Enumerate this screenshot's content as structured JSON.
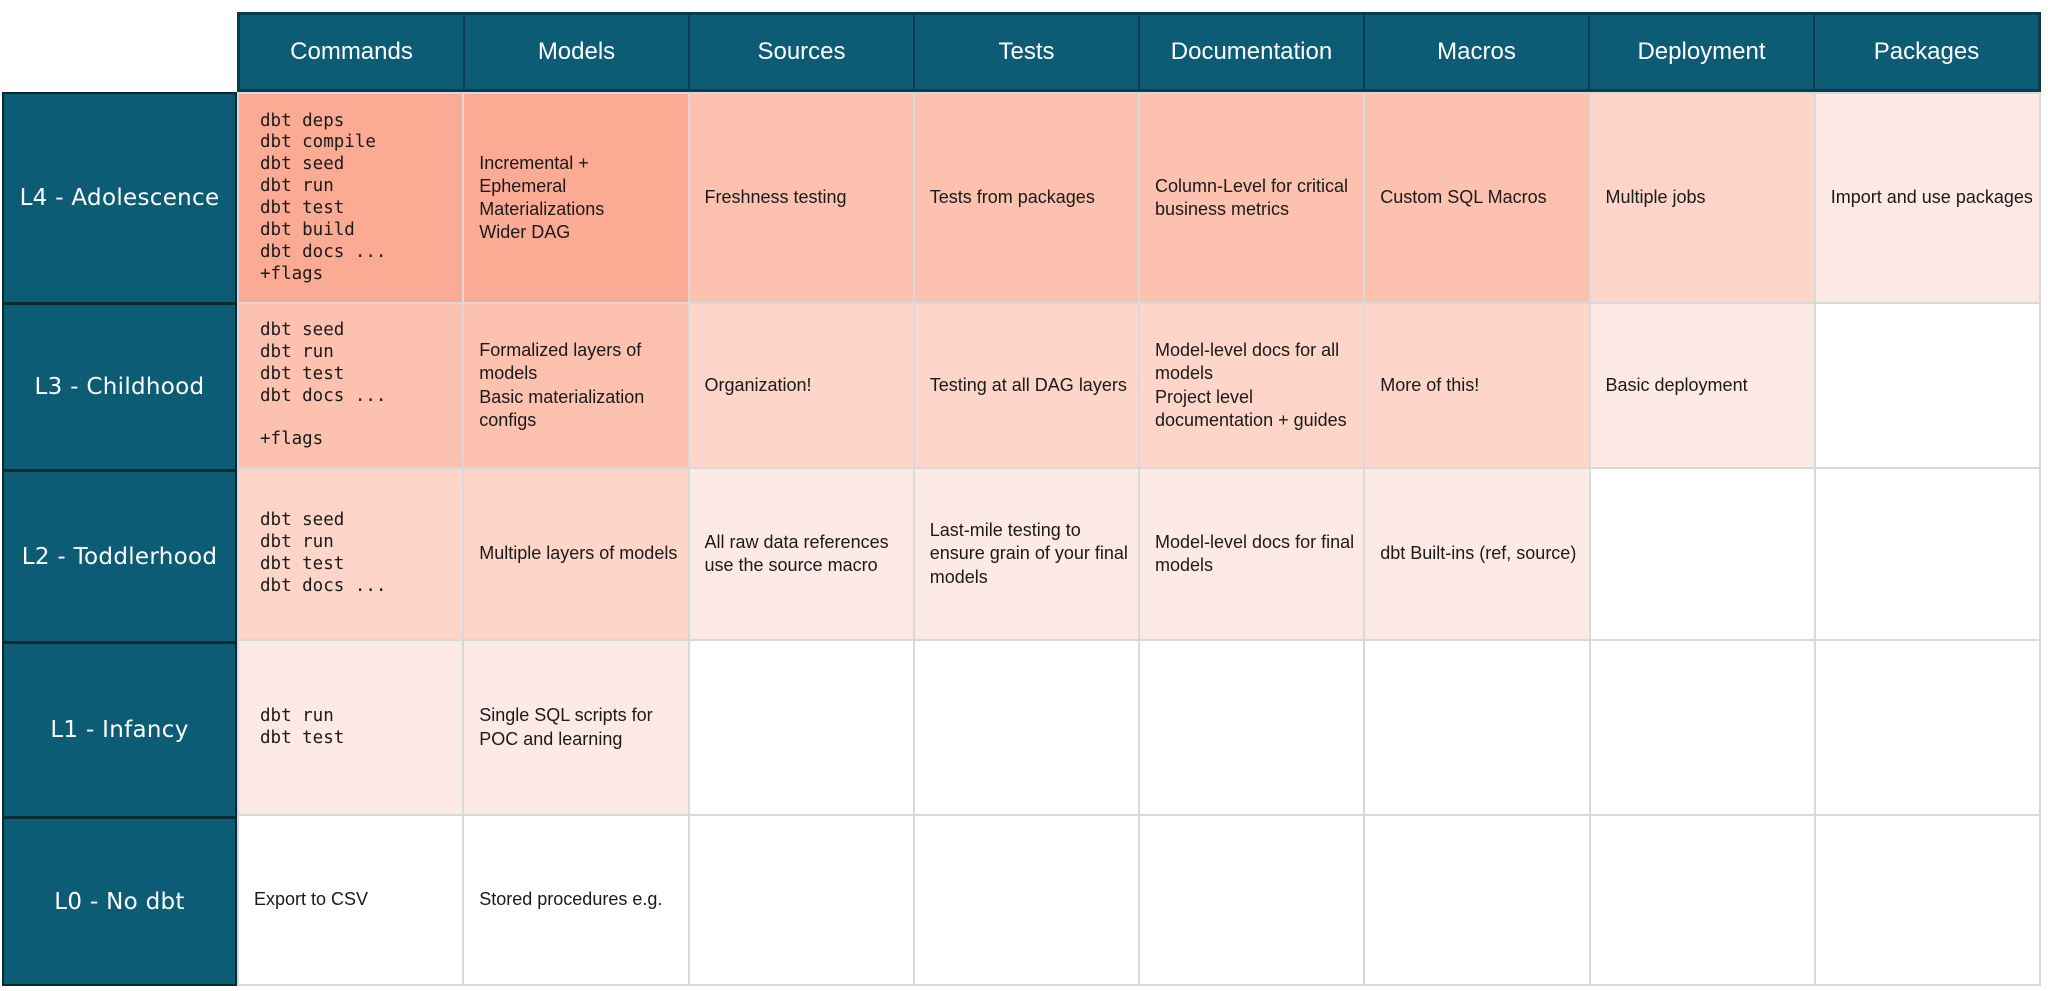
{
  "colors": {
    "teal": "#0d5c75",
    "header_border": "#093c4e",
    "label_border": "#0b2833",
    "grid_line": "#d9d9d9",
    "header_text": "#ffffff",
    "cell_text": "#1a1a1a",
    "shade_palette": [
      "#fbaa94",
      "#fcc1af",
      "#fdd5c9",
      "#feeae5",
      "#ffffff"
    ]
  },
  "chart_data": {
    "type": "table",
    "title": "",
    "columns": [
      "Commands",
      "Models",
      "Sources",
      "Tests",
      "Documentation",
      "Macros",
      "Deployment",
      "Packages"
    ],
    "row_labels": [
      "L4 - Adolescence",
      "L3 - Childhood",
      "L2 - Toddlerhood",
      "L1 - Infancy",
      "L0 - No dbt"
    ],
    "shade_palette": [
      "#fbaa94",
      "#fcc1af",
      "#fdd5c9",
      "#feeae5",
      "#ffffff"
    ],
    "rows": [
      {
        "label": "L4 - Adolescence",
        "cells": [
          {
            "text": "dbt deps\ndbt compile\ndbt seed\ndbt run\ndbt test\ndbt build\ndbt docs ...\n+flags",
            "mono": true,
            "shade": 0
          },
          {
            "text": "Incremental +\nEphemeral\nMaterializations\nWider DAG",
            "shade": 0
          },
          {
            "text": "Freshness testing",
            "shade": 1,
            "nowrap": true
          },
          {
            "text": "Tests from packages",
            "shade": 1,
            "nowrap": true
          },
          {
            "text": "Column-Level for critical\nbusiness metrics",
            "shade": 1
          },
          {
            "text": "Custom SQL Macros",
            "shade": 1,
            "nowrap": true
          },
          {
            "text": "Multiple jobs",
            "shade": 2,
            "nowrap": true
          },
          {
            "text": "Import and use packages",
            "shade": 3,
            "nowrap": true
          }
        ]
      },
      {
        "label": "L3 - Childhood",
        "cells": [
          {
            "text": "dbt seed\ndbt run\ndbt test\ndbt docs ...\n\n+flags",
            "mono": true,
            "shade": 1
          },
          {
            "text": "Formalized layers of models\nBasic materialization configs",
            "shade": 1
          },
          {
            "text": "Organization!",
            "shade": 2,
            "nowrap": true
          },
          {
            "text": "Testing at all DAG layers",
            "shade": 2,
            "nowrap": true
          },
          {
            "text": "Model-level docs for all models\nProject level documentation + guides",
            "shade": 2
          },
          {
            "text": "More of this!",
            "shade": 2,
            "nowrap": true
          },
          {
            "text": "Basic deployment",
            "shade": 3,
            "nowrap": true
          },
          {
            "text": "",
            "shade": 4
          }
        ]
      },
      {
        "label": "L2 - Toddlerhood",
        "cells": [
          {
            "text": "dbt seed\ndbt run\ndbt test\ndbt docs ...",
            "mono": true,
            "shade": 2
          },
          {
            "text": "Multiple layers of models",
            "shade": 2,
            "nowrap": true
          },
          {
            "text": "All raw data references use the source macro",
            "shade": 3
          },
          {
            "text": "Last-mile testing to ensure grain of your final models",
            "shade": 3
          },
          {
            "text": "Model-level docs for final models",
            "shade": 3
          },
          {
            "text": "dbt Built-ins (ref, source)",
            "shade": 3,
            "nowrap": true
          },
          {
            "text": "",
            "shade": 4
          },
          {
            "text": "",
            "shade": 4
          }
        ]
      },
      {
        "label": "L1 - Infancy",
        "cells": [
          {
            "text": "dbt run\ndbt test",
            "mono": true,
            "shade": 3
          },
          {
            "text": "Single SQL scripts for POC and learning",
            "shade": 3
          },
          {
            "text": "",
            "shade": 4
          },
          {
            "text": "",
            "shade": 4
          },
          {
            "text": "",
            "shade": 4
          },
          {
            "text": "",
            "shade": 4
          },
          {
            "text": "",
            "shade": 4
          },
          {
            "text": "",
            "shade": 4
          }
        ]
      },
      {
        "label": "L0 - No dbt",
        "cells": [
          {
            "text": "Export to CSV",
            "shade": 4,
            "nowrap": true
          },
          {
            "text": "Stored procedures e.g.",
            "shade": 4,
            "nowrap": true
          },
          {
            "text": "",
            "shade": 4
          },
          {
            "text": "",
            "shade": 4
          },
          {
            "text": "",
            "shade": 4
          },
          {
            "text": "",
            "shade": 4
          },
          {
            "text": "",
            "shade": 4
          },
          {
            "text": "",
            "shade": 4
          }
        ]
      }
    ]
  }
}
